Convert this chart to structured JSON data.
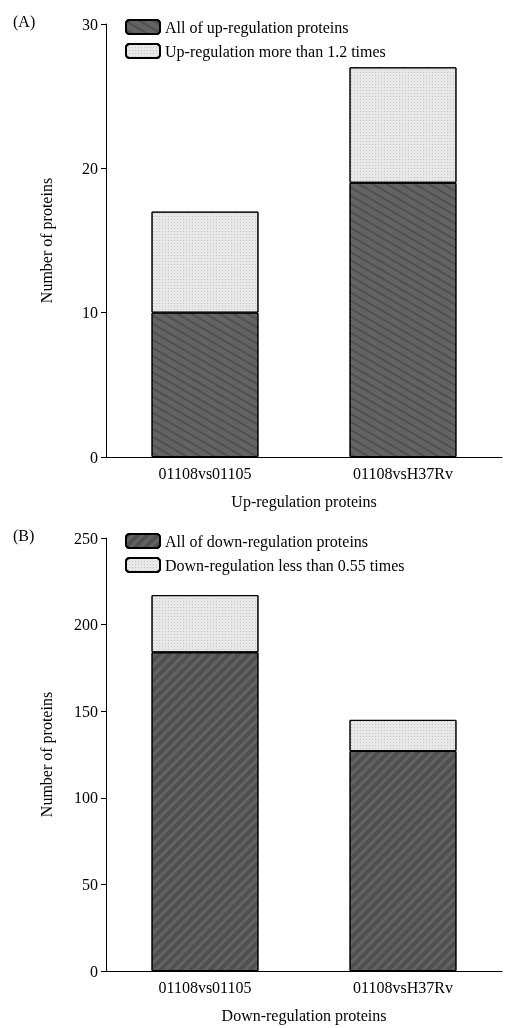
{
  "chart_data": [
    {
      "type": "bar",
      "title": "(A)",
      "xlabel": "Up-regulation proteins",
      "ylabel": "Number of proteins",
      "categories": [
        "01108vs01105",
        "01108vsH37Rv"
      ],
      "stacked": true,
      "series": [
        {
          "name": "All of up-regulation proteins",
          "color": "#636363",
          "values": [
            10,
            19
          ]
        },
        {
          "name": "Up-regulation more than 1.2 times",
          "color": "#e8e8e8",
          "values": [
            7,
            8
          ]
        }
      ],
      "ylim": [
        0,
        30
      ],
      "yticks": [
        0,
        10,
        20,
        30
      ],
      "grid": false,
      "legend": "top left"
    },
    {
      "type": "bar",
      "title": "(B)",
      "xlabel": "Down-regulation proteins",
      "ylabel": "Number of proteins",
      "categories": [
        "01108vs01105",
        "01108vsH37Rv"
      ],
      "stacked": true,
      "series": [
        {
          "name": "All of down-regulation proteins",
          "color": "#636363",
          "values": [
            184,
            127
          ]
        },
        {
          "name": "Down-regulation less than 0.55 times",
          "color": "#e8e8e8",
          "values": [
            33,
            18
          ]
        }
      ],
      "ylim": [
        0,
        250
      ],
      "yticks": [
        0,
        50,
        100,
        150,
        200,
        250
      ],
      "grid": false,
      "legend": "top left"
    }
  ]
}
